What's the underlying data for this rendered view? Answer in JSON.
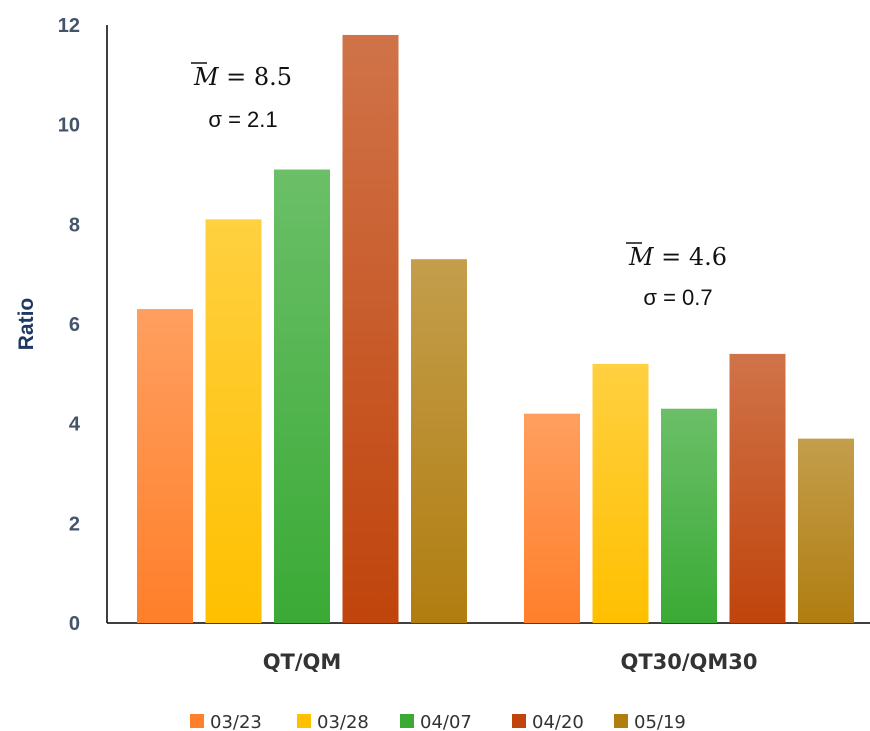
{
  "chart_data": {
    "type": "bar",
    "title": "",
    "xlabel": "",
    "ylabel": "Ratio",
    "ylim": [
      0,
      12
    ],
    "yticks": [
      0,
      2,
      4,
      6,
      8,
      10,
      12
    ],
    "grid": false,
    "legend_position": "bottom",
    "categories": [
      "QT/QM",
      "QT30/QM30"
    ],
    "series": [
      {
        "name": "03/23",
        "color": "#ff7f2a",
        "values": [
          6.3,
          4.2
        ]
      },
      {
        "name": "03/28",
        "color": "#ffc000",
        "values": [
          8.1,
          5.2
        ]
      },
      {
        "name": "04/07",
        "color": "#3aaa35",
        "values": [
          9.1,
          4.3
        ]
      },
      {
        "name": "04/20",
        "color": "#c0440c",
        "values": [
          11.8,
          5.4
        ]
      },
      {
        "name": "05/19",
        "color": "#b07d10",
        "values": [
          7.3,
          3.7
        ]
      }
    ],
    "annotations": [
      {
        "category": "QT/QM",
        "mean_text": "8.5",
        "sigma_text": "σ = 2.1"
      },
      {
        "category": "QT30/QM30",
        "mean_text": "4.6",
        "sigma_text": "σ = 0.7"
      }
    ]
  }
}
